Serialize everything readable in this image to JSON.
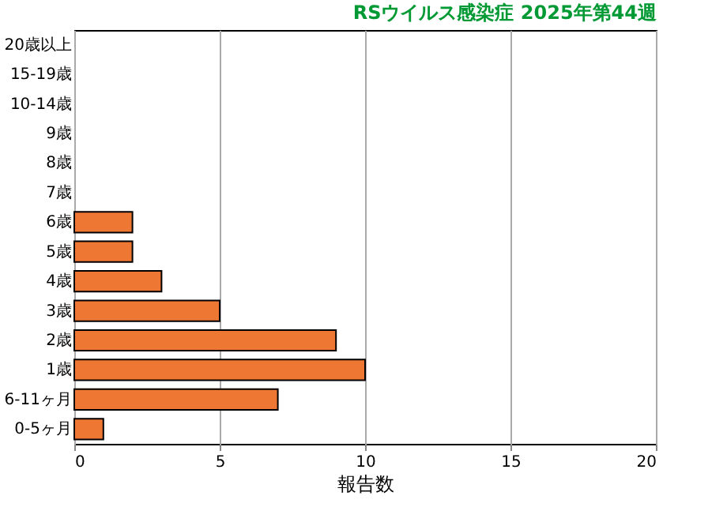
{
  "chart_data": {
    "type": "bar",
    "orientation": "horizontal",
    "title": "RSウイルス感染症 2025年第44週",
    "xlabel": "報告数",
    "categories": [
      "20歳以上",
      "15-19歳",
      "10-14歳",
      "9歳",
      "8歳",
      "7歳",
      "6歳",
      "5歳",
      "4歳",
      "3歳",
      "2歳",
      "1歳",
      "6-11ヶ月",
      "0-5ヶ月"
    ],
    "values": [
      0,
      0,
      0,
      0,
      0,
      0,
      2,
      2,
      3,
      5,
      9,
      10,
      7,
      1
    ],
    "color": "#ee7733",
    "xlim": [
      0,
      20
    ],
    "xticks": [
      0,
      5,
      10,
      15,
      20
    ],
    "grid": "x"
  }
}
